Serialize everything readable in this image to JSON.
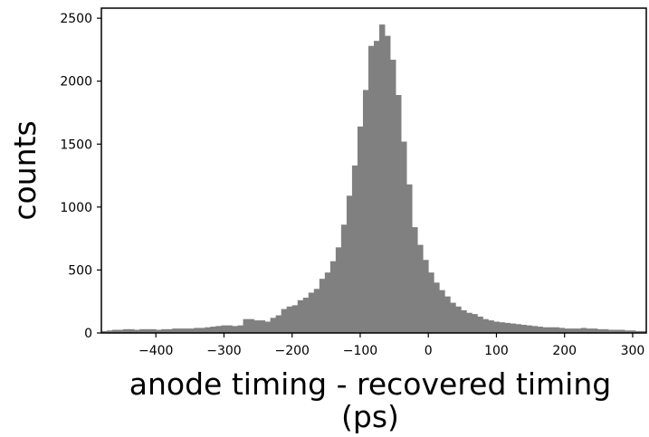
{
  "chart_data": {
    "type": "bar",
    "xlabel_line1": "anode timing - recovered timing",
    "xlabel_line2": "(ps)",
    "ylabel": "counts",
    "xlim": [
      -480,
      320
    ],
    "ylim": [
      0,
      2580
    ],
    "xticks": [
      -400,
      -300,
      -200,
      -100,
      0,
      100,
      200,
      300
    ],
    "yticks": [
      0,
      500,
      1000,
      1500,
      2000,
      2500
    ],
    "bin_width": 8,
    "bar_color": "#808080",
    "grid": false,
    "x": [
      -476,
      -468,
      -460,
      -452,
      -444,
      -436,
      -428,
      -420,
      -412,
      -404,
      -396,
      -388,
      -380,
      -372,
      -364,
      -356,
      -348,
      -340,
      -332,
      -324,
      -316,
      -308,
      -300,
      -292,
      -284,
      -276,
      -268,
      -260,
      -252,
      -244,
      -236,
      -228,
      -220,
      -212,
      -204,
      -196,
      -188,
      -180,
      -172,
      -164,
      -156,
      -148,
      -140,
      -132,
      -124,
      -116,
      -108,
      -100,
      -92,
      -84,
      -76,
      -68,
      -60,
      -52,
      -44,
      -36,
      -28,
      -20,
      -12,
      -4,
      4,
      12,
      20,
      28,
      36,
      44,
      52,
      60,
      68,
      76,
      84,
      92,
      100,
      108,
      116,
      124,
      132,
      140,
      148,
      156,
      164,
      172,
      180,
      188,
      196,
      204,
      212,
      220,
      228,
      236,
      244,
      252,
      260,
      268,
      276,
      284,
      292,
      300,
      308,
      316
    ],
    "values": [
      15,
      20,
      25,
      25,
      30,
      30,
      25,
      30,
      30,
      30,
      25,
      30,
      30,
      35,
      35,
      35,
      35,
      40,
      40,
      45,
      50,
      55,
      60,
      60,
      55,
      60,
      110,
      110,
      100,
      100,
      90,
      120,
      140,
      190,
      210,
      220,
      260,
      280,
      320,
      350,
      430,
      480,
      570,
      680,
      860,
      1090,
      1330,
      1640,
      1930,
      2280,
      2320,
      2450,
      2360,
      2170,
      1890,
      1520,
      1180,
      840,
      700,
      580,
      480,
      400,
      340,
      290,
      240,
      210,
      180,
      160,
      150,
      130,
      110,
      100,
      90,
      85,
      80,
      75,
      70,
      65,
      60,
      55,
      50,
      45,
      45,
      45,
      40,
      35,
      35,
      35,
      40,
      35,
      35,
      30,
      30,
      25,
      25,
      25,
      20,
      20,
      15,
      15
    ]
  }
}
